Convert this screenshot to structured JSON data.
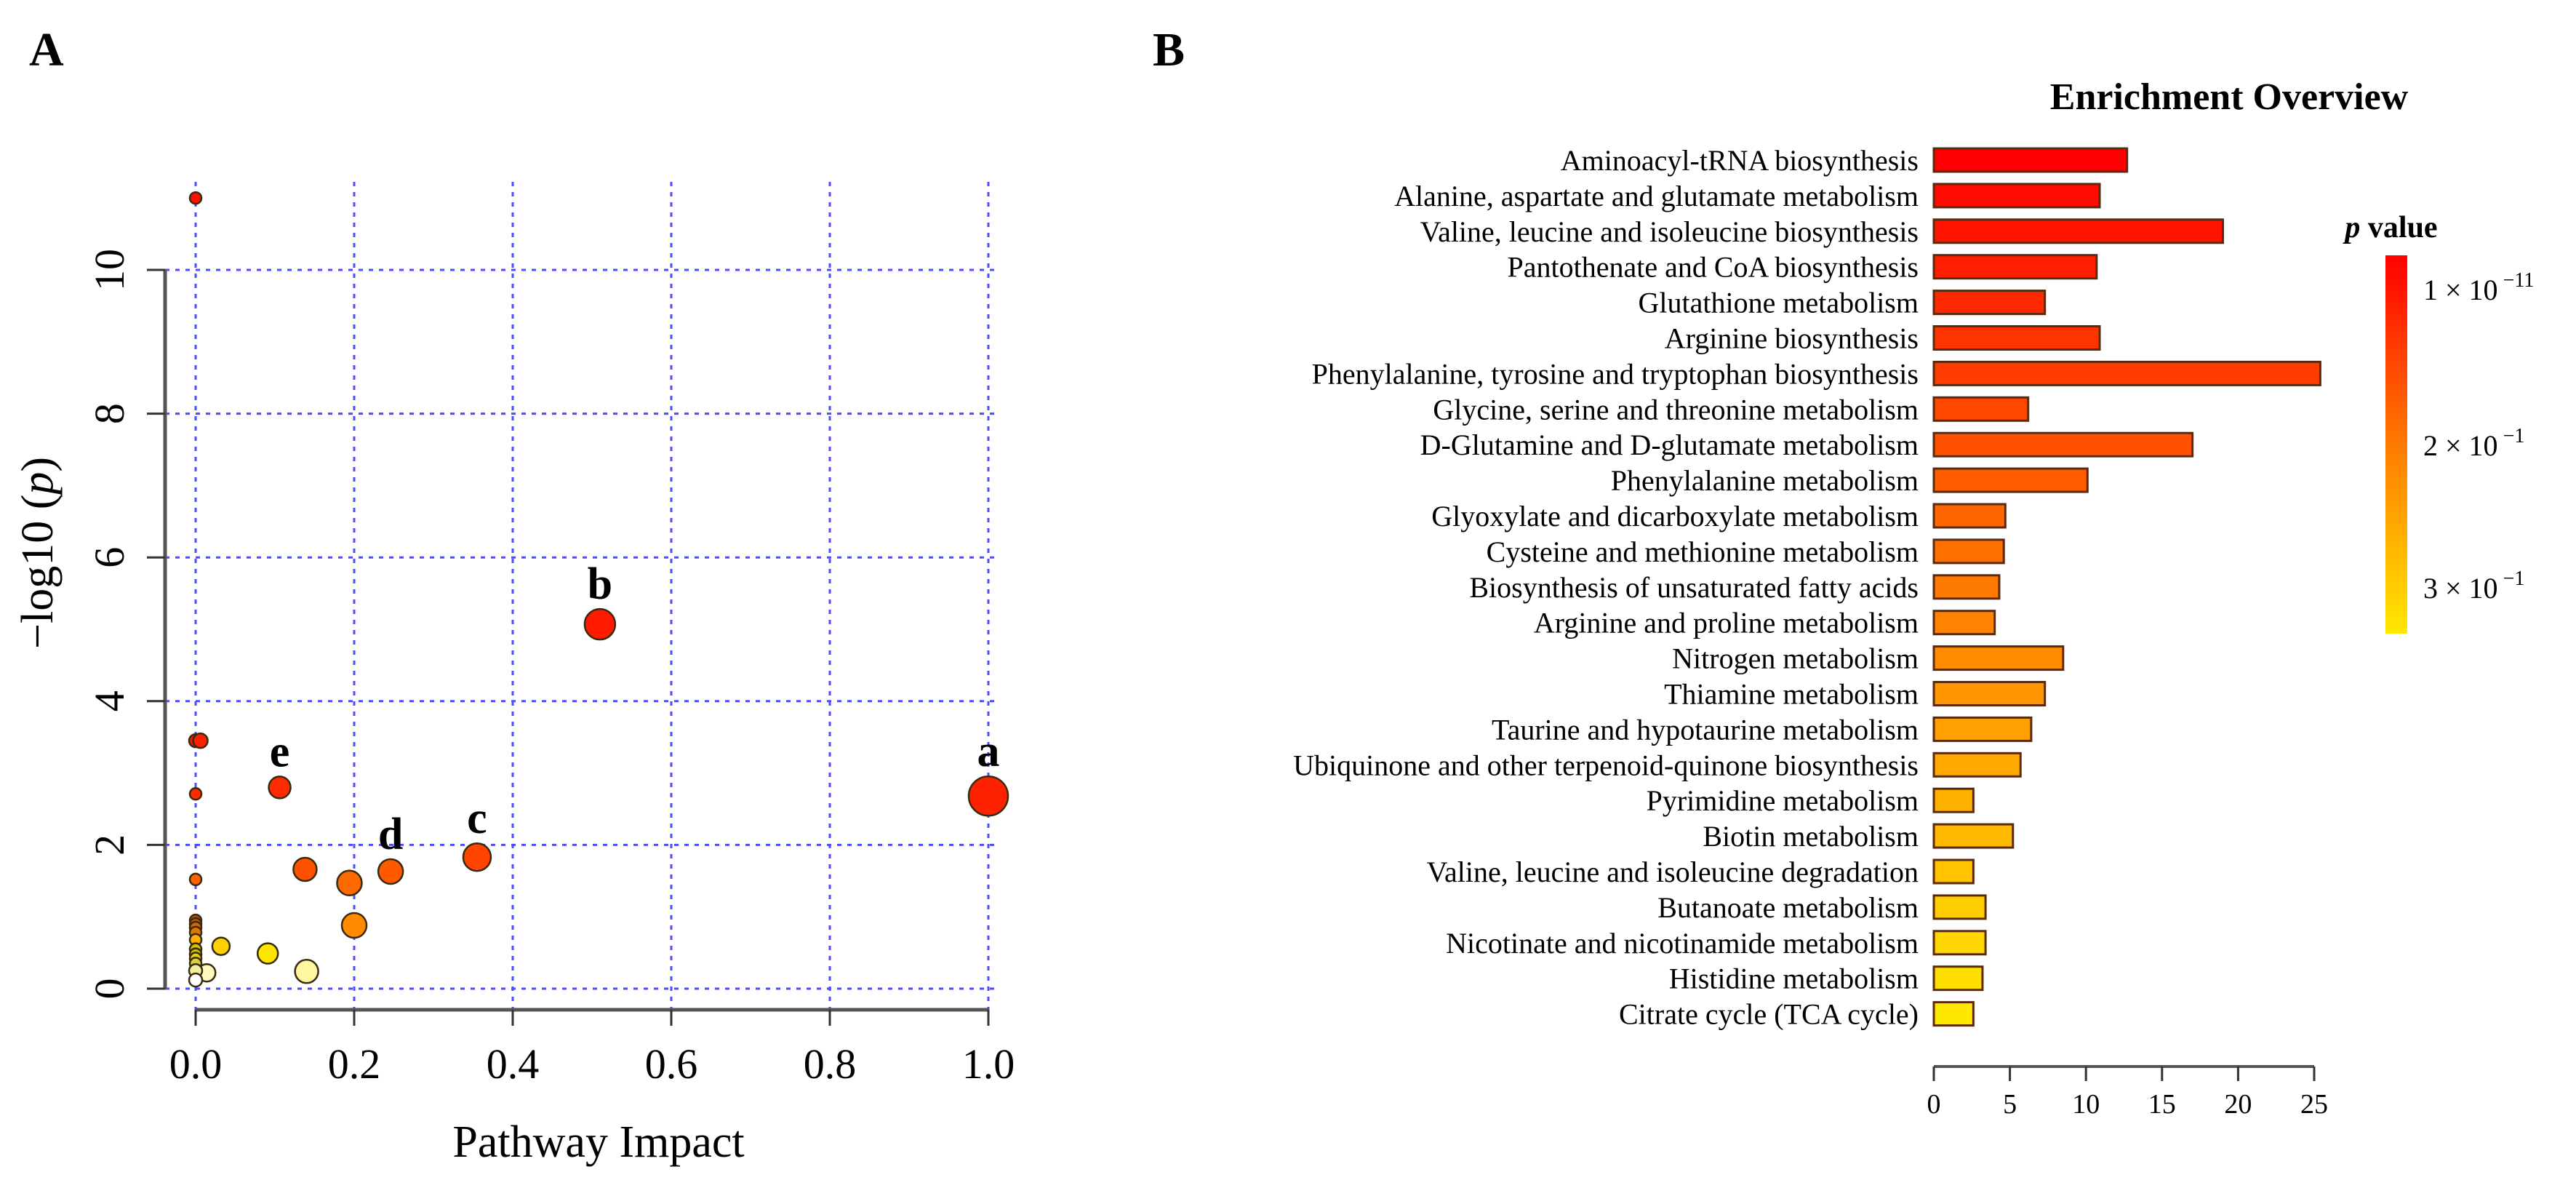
{
  "panels": {
    "a_label": "A",
    "b_label": "B"
  },
  "chart_data": [
    {
      "type": "scatter",
      "xlabel": "Pathway Impact",
      "ylabel_prefix": "−log10 (",
      "ylabel_italic": "p",
      "ylabel_suffix": ")",
      "xlim": [
        0,
        1.0
      ],
      "ylim": [
        0,
        11
      ],
      "xticks": [
        "0.0",
        "0.2",
        "0.4",
        "0.6",
        "0.8",
        "1.0"
      ],
      "yticks": [
        "0",
        "2",
        "4",
        "6",
        "8",
        "10"
      ],
      "grid": true,
      "points": [
        {
          "x": 1.0,
          "y": 2.68,
          "size": 27,
          "color": "#ff2200",
          "label": "a"
        },
        {
          "x": 0.51,
          "y": 5.07,
          "size": 21,
          "color": "#ff1a00",
          "label": "b"
        },
        {
          "x": 0.355,
          "y": 1.83,
          "size": 19,
          "color": "#ff4400",
          "label": "c"
        },
        {
          "x": 0.246,
          "y": 1.63,
          "size": 17,
          "color": "#ff5a00",
          "label": "d"
        },
        {
          "x": 0.106,
          "y": 2.8,
          "size": 15,
          "color": "#ff2a00",
          "label": "e"
        },
        {
          "x": 0.138,
          "y": 1.66,
          "size": 16,
          "color": "#ff5200"
        },
        {
          "x": 0.194,
          "y": 1.47,
          "size": 17,
          "color": "#ff6a00"
        },
        {
          "x": 0.2,
          "y": 0.88,
          "size": 17,
          "color": "#ff8a00"
        },
        {
          "x": 0.091,
          "y": 0.49,
          "size": 14,
          "color": "#ffe600"
        },
        {
          "x": 0.14,
          "y": 0.24,
          "size": 16,
          "color": "#fff6a0"
        },
        {
          "x": 0.032,
          "y": 0.59,
          "size": 12,
          "color": "#ffd000"
        },
        {
          "x": 0.014,
          "y": 0.22,
          "size": 12,
          "color": "#fff8c0"
        },
        {
          "x": 0.0,
          "y": 11.0,
          "size": 8,
          "color": "#ff1000"
        },
        {
          "x": 0.0,
          "y": 3.45,
          "size": 9,
          "color": "#ff1800"
        },
        {
          "x": 0.006,
          "y": 3.45,
          "size": 10,
          "color": "#ff2000"
        },
        {
          "x": 0.0,
          "y": 2.71,
          "size": 8,
          "color": "#ff2a00"
        },
        {
          "x": 0.0,
          "y": 1.52,
          "size": 8,
          "color": "#ff6000"
        },
        {
          "x": 0.0,
          "y": 0.95,
          "size": 8,
          "color": "#b84a00"
        },
        {
          "x": 0.0,
          "y": 0.9,
          "size": 8,
          "color": "#c85800"
        },
        {
          "x": 0.0,
          "y": 0.85,
          "size": 8,
          "color": "#d86600"
        },
        {
          "x": 0.0,
          "y": 0.78,
          "size": 8,
          "color": "#e07800"
        },
        {
          "x": 0.0,
          "y": 0.68,
          "size": 8,
          "color": "#ffb000"
        },
        {
          "x": 0.0,
          "y": 0.55,
          "size": 8,
          "color": "#d8c000"
        },
        {
          "x": 0.0,
          "y": 0.48,
          "size": 8,
          "color": "#c8c000"
        },
        {
          "x": 0.0,
          "y": 0.42,
          "size": 8,
          "color": "#e0d800"
        },
        {
          "x": 0.0,
          "y": 0.35,
          "size": 8,
          "color": "#d8d040"
        },
        {
          "x": 0.0,
          "y": 0.25,
          "size": 9,
          "color": "#f0f0a0"
        },
        {
          "x": 0.0,
          "y": 0.12,
          "size": 9,
          "color": "#ffffff"
        }
      ]
    },
    {
      "type": "bar",
      "orientation": "horizontal",
      "title": "Enrichment Overview",
      "xlim": [
        0,
        25
      ],
      "xticks": [
        "0",
        "5",
        "10",
        "15",
        "20",
        "25"
      ],
      "color_high": "#ff0000",
      "color_mid": "#ff7a00",
      "color_low": "#ffe800",
      "categories": [
        "Aminoacyl-tRNA biosynthesis",
        "Alanine, aspartate and glutamate metabolism",
        "Valine, leucine and isoleucine biosynthesis",
        "Pantothenate and CoA biosynthesis",
        "Glutathione metabolism",
        "Arginine biosynthesis",
        "Phenylalanine, tyrosine and tryptophan biosynthesis",
        "Glycine, serine and threonine metabolism",
        "D-Glutamine and D-glutamate metabolism",
        "Phenylalanine metabolism",
        "Glyoxylate and dicarboxylate metabolism",
        "Cysteine and methionine metabolism",
        "Biosynthesis of unsaturated fatty acids",
        "Arginine and proline metabolism",
        "Nitrogen metabolism",
        "Thiamine metabolism",
        "Taurine and hypotaurine metabolism",
        "Ubiquinone and other terpenoid-quinone biosynthesis",
        "Pyrimidine metabolism",
        "Biotin metabolism",
        "Valine, leucine and isoleucine degradation",
        "Butanoate metabolism",
        "Nicotinate and nicotinamide metabolism",
        "Histidine metabolism",
        "Citrate cycle (TCA cycle)"
      ],
      "values": [
        12.7,
        10.9,
        19.0,
        10.7,
        7.3,
        10.9,
        25.4,
        6.2,
        17.0,
        10.1,
        4.7,
        4.6,
        4.3,
        4.0,
        8.5,
        7.3,
        6.4,
        5.7,
        2.6,
        5.2,
        2.6,
        3.4,
        3.4,
        3.2,
        2.6
      ],
      "legend": {
        "title_italic": "p",
        "title_rest": " value",
        "ticks": [
          {
            "base": "1 × 10",
            "exp": "−11"
          },
          {
            "base": "2 × 10",
            "exp": "−1"
          },
          {
            "base": "3 × 10",
            "exp": "−1"
          }
        ]
      }
    }
  ]
}
